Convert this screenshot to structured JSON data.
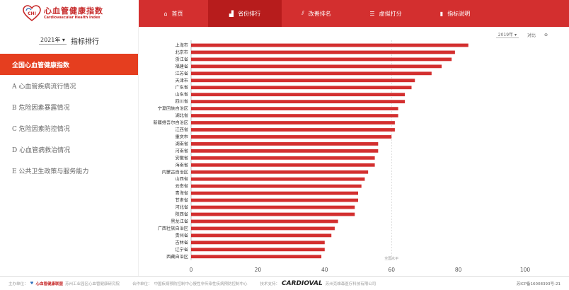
{
  "logo": {
    "title": "心血管健康指数",
    "subtitle": "Cardiovascular Health Index",
    "mark": "CHI"
  },
  "nav": [
    {
      "label": "首页",
      "icon": "home-icon",
      "glyph": "⌂",
      "active": false
    },
    {
      "label": "省份排行",
      "icon": "bar-chart-icon",
      "glyph": "▟",
      "active": true
    },
    {
      "label": "改善排名",
      "icon": "trend-icon",
      "glyph": "⫽",
      "active": false
    },
    {
      "label": "虚拟打分",
      "icon": "sliders-icon",
      "glyph": "☰",
      "active": false
    },
    {
      "label": "指标说明",
      "icon": "book-icon",
      "glyph": "▮",
      "active": false
    }
  ],
  "sidebar": {
    "year": "2021年",
    "title": "指标排行",
    "items": [
      {
        "label": "全国心血管健康指数",
        "active": true
      },
      {
        "label": "A 心血管疾病流行情况",
        "active": false
      },
      {
        "label": "B 危险因素暴露情况",
        "active": false
      },
      {
        "label": "C 危险因素防控情况",
        "active": false
      },
      {
        "label": "D 心血管病救治情况",
        "active": false
      },
      {
        "label": "E 公共卫生政策与服务能力",
        "active": false
      }
    ]
  },
  "controls": {
    "year": "2019年",
    "compare": "对比",
    "extra": "⊕"
  },
  "chart_data": {
    "type": "bar",
    "orientation": "horizontal",
    "categories": [
      "上海市",
      "北京市",
      "浙江省",
      "福建省",
      "江苏省",
      "天津市",
      "广东省",
      "山东省",
      "四川省",
      "宁夏回族自治区",
      "湖北省",
      "新疆维吾尔自治区",
      "江西省",
      "重庆市",
      "湖南省",
      "河南省",
      "安徽省",
      "海南省",
      "内蒙古自治区",
      "山西省",
      "云南省",
      "青海省",
      "甘肃省",
      "河北省",
      "陕西省",
      "黑龙江省",
      "广西壮族自治区",
      "贵州省",
      "吉林省",
      "辽宁省",
      "西藏自治区"
    ],
    "values": [
      83,
      79,
      78,
      75,
      72,
      67,
      66,
      64,
      64,
      62,
      62,
      61,
      61,
      60,
      56,
      56,
      55,
      55,
      53,
      52,
      51,
      50,
      50,
      49,
      49,
      44,
      43,
      42,
      40,
      40,
      39
    ],
    "xlim": [
      0,
      100
    ],
    "xticks": [
      0,
      20,
      40,
      60,
      80,
      100
    ],
    "reference_line": {
      "value": 60,
      "label": "全国水平"
    },
    "bar_color": "#d32f2f"
  },
  "footer": {
    "host_label": "主办单位：",
    "host": "心血管健康联盟",
    "host_extra": "苏州工业园区心血管健康研究院",
    "co_label": "合作单位：",
    "co": "中国疾病预防控制中心慢性非传染性疾病预防控制中心",
    "tech_label": "技术支持：",
    "tech_brand": "CARDIOVAL",
    "tech": "苏州克维森医疗科技有限公司",
    "icp": "苏ICP备16008393号-21"
  }
}
